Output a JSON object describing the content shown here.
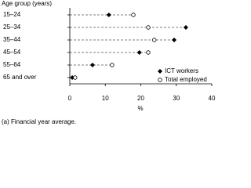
{
  "chart_data": {
    "type": "dot",
    "y_axis_title": "Age group (years)",
    "x_axis_title": "%",
    "footnote": "(a) Financial year average.",
    "categories": [
      "15–24",
      "25–34",
      "35–44",
      "45–54",
      "55–64",
      "65 and over"
    ],
    "series": [
      {
        "name": "ICT workers",
        "color": "#000000",
        "marker": "filled",
        "values": [
          11.0,
          32.7,
          29.4,
          19.6,
          6.4,
          0.7
        ]
      },
      {
        "name": "Total employed",
        "color": "#000000",
        "marker": "open",
        "values": [
          17.9,
          22.1,
          23.8,
          22.1,
          11.9,
          1.5
        ]
      }
    ],
    "xlim": [
      0,
      40
    ],
    "xticks": [
      0,
      10,
      20,
      30,
      40
    ],
    "legend": "lower right"
  }
}
